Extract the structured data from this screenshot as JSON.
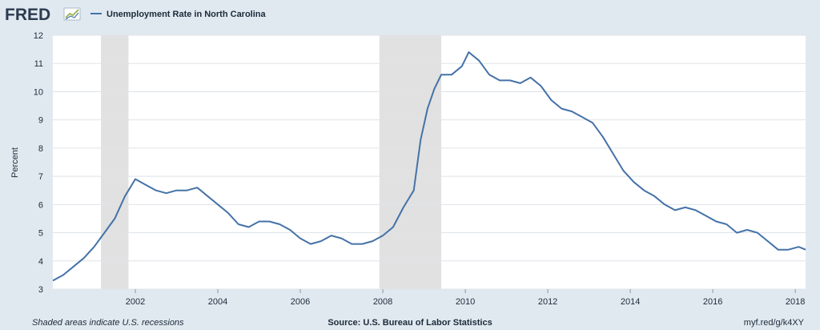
{
  "brand": {
    "logo_text": "FRED"
  },
  "footer": {
    "left": "Shaded areas indicate U.S. recessions",
    "center": "Source: U.S. Bureau of Labor Statistics",
    "right": "myf.red/g/k4XY"
  },
  "colors": {
    "series": "#4572a7",
    "background": "#e1e9f0",
    "plot": "#ffffff",
    "recession": "#e1e1e1"
  },
  "chart_data": {
    "type": "line",
    "title": "",
    "xlabel": "",
    "ylabel": "Percent",
    "xlim": [
      "2000-01",
      "2018-04"
    ],
    "ylim": [
      3,
      12
    ],
    "yticks": [
      3,
      4,
      5,
      6,
      7,
      8,
      9,
      10,
      11,
      12
    ],
    "xtick_labels": [
      "2002",
      "2004",
      "2006",
      "2008",
      "2010",
      "2012",
      "2014",
      "2016",
      "2018"
    ],
    "grid": true,
    "legend_position": "top-left",
    "recessions": [
      [
        "2001-03",
        "2001-11"
      ],
      [
        "2007-12",
        "2009-06"
      ]
    ],
    "series": [
      {
        "name": "Unemployment Rate in North Carolina",
        "x": [
          "2000-01",
          "2000-04",
          "2000-07",
          "2000-10",
          "2001-01",
          "2001-04",
          "2001-07",
          "2001-10",
          "2002-01",
          "2002-04",
          "2002-07",
          "2002-10",
          "2003-01",
          "2003-04",
          "2003-07",
          "2003-10",
          "2004-01",
          "2004-04",
          "2004-07",
          "2004-10",
          "2005-01",
          "2005-04",
          "2005-07",
          "2005-10",
          "2006-01",
          "2006-04",
          "2006-07",
          "2006-10",
          "2007-01",
          "2007-04",
          "2007-07",
          "2007-10",
          "2008-01",
          "2008-04",
          "2008-07",
          "2008-10",
          "2008-12",
          "2009-02",
          "2009-04",
          "2009-06",
          "2009-09",
          "2009-12",
          "2010-02",
          "2010-05",
          "2010-08",
          "2010-11",
          "2011-02",
          "2011-05",
          "2011-08",
          "2011-11",
          "2012-02",
          "2012-05",
          "2012-08",
          "2012-11",
          "2013-02",
          "2013-05",
          "2013-08",
          "2013-11",
          "2014-02",
          "2014-05",
          "2014-08",
          "2014-11",
          "2015-02",
          "2015-05",
          "2015-08",
          "2015-11",
          "2016-02",
          "2016-05",
          "2016-08",
          "2016-11",
          "2017-02",
          "2017-05",
          "2017-08",
          "2017-11",
          "2018-02",
          "2018-04"
        ],
        "values": [
          3.3,
          3.5,
          3.8,
          4.1,
          4.5,
          5.0,
          5.5,
          6.3,
          6.9,
          6.7,
          6.5,
          6.4,
          6.5,
          6.5,
          6.6,
          6.3,
          6.0,
          5.7,
          5.3,
          5.2,
          5.4,
          5.4,
          5.3,
          5.1,
          4.8,
          4.6,
          4.7,
          4.9,
          4.8,
          4.6,
          4.6,
          4.7,
          4.9,
          5.2,
          5.9,
          6.5,
          8.3,
          9.4,
          10.1,
          10.6,
          10.6,
          10.9,
          11.4,
          11.1,
          10.6,
          10.4,
          10.4,
          10.3,
          10.5,
          10.2,
          9.7,
          9.4,
          9.3,
          9.1,
          8.9,
          8.4,
          7.8,
          7.2,
          6.8,
          6.5,
          6.3,
          6.0,
          5.8,
          5.9,
          5.8,
          5.6,
          5.4,
          5.3,
          5.0,
          5.1,
          5.0,
          4.7,
          4.4,
          4.4,
          4.5,
          4.4
        ]
      }
    ]
  }
}
